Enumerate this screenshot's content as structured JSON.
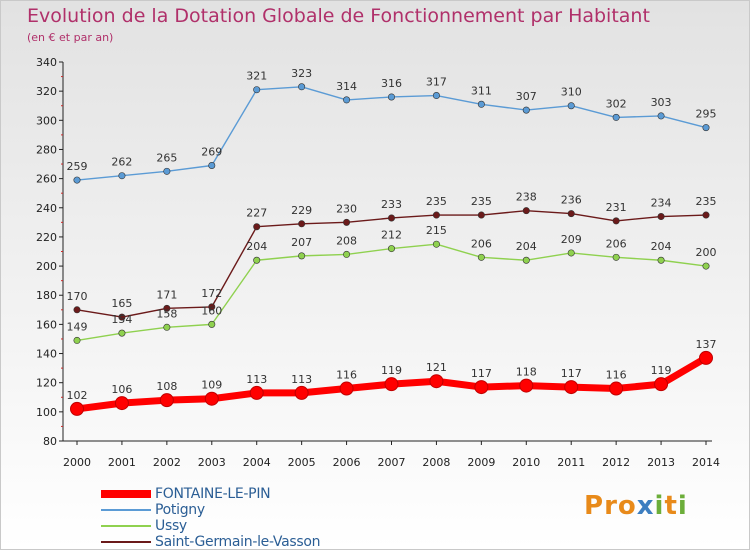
{
  "title": "Evolution de la Dotation Globale de Fonctionnement par Habitant",
  "subtitle": "(en € et par an)",
  "logo": {
    "letters": [
      {
        "ch": "P",
        "color": "#e88a1a"
      },
      {
        "ch": "r",
        "color": "#e88a1a"
      },
      {
        "ch": "o",
        "color": "#e88a1a"
      },
      {
        "ch": "x",
        "color": "#3d7ec0"
      },
      {
        "ch": "i",
        "color": "#6cae3a"
      },
      {
        "ch": "t",
        "color": "#e88a1a"
      },
      {
        "ch": "i",
        "color": "#6cae3a"
      }
    ]
  },
  "chart_data": {
    "type": "line",
    "title": "Evolution de la Dotation Globale de Fonctionnement par Habitant",
    "subtitle": "(en € et par an)",
    "x": [
      "2000",
      "2001",
      "2002",
      "2003",
      "2004",
      "2005",
      "2006",
      "2007",
      "2008",
      "2009",
      "2010",
      "2011",
      "2012",
      "2013",
      "2014"
    ],
    "ylim": [
      80,
      340
    ],
    "yticks": [
      80,
      100,
      120,
      140,
      160,
      180,
      200,
      220,
      240,
      260,
      280,
      300,
      320,
      340
    ],
    "grid": false,
    "legend_position": "bottom-left",
    "series": [
      {
        "name": "FONTAINE-LE-PIN",
        "color": "#ff0000",
        "values": [
          102,
          106,
          108,
          109,
          113,
          113,
          116,
          119,
          121,
          117,
          118,
          117,
          116,
          119,
          137
        ]
      },
      {
        "name": "Potigny",
        "color": "#5b9bd5",
        "values": [
          259,
          262,
          265,
          269,
          321,
          323,
          314,
          316,
          317,
          311,
          307,
          310,
          302,
          303,
          295
        ]
      },
      {
        "name": "Ussy",
        "color": "#8fd14f",
        "values": [
          149,
          154,
          158,
          160,
          204,
          207,
          208,
          212,
          215,
          206,
          204,
          209,
          206,
          204,
          200
        ]
      },
      {
        "name": "Saint-Germain-le-Vasson",
        "color": "#6b1a1a",
        "values": [
          170,
          165,
          171,
          172,
          227,
          229,
          230,
          233,
          235,
          235,
          238,
          236,
          231,
          234,
          235
        ]
      }
    ]
  }
}
